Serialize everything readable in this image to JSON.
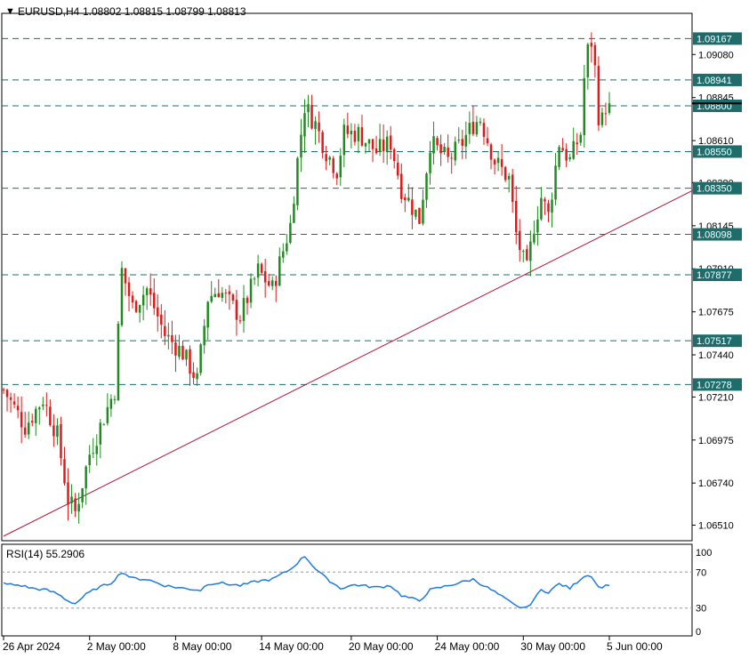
{
  "header": {
    "menu_glyph": "▼",
    "symbol_label": "EURUSD,H4",
    "ohlc_values": "1.08802 1.08815 1.08799 1.08813"
  },
  "rsi_header": {
    "label": "RSI(14) 55.2906"
  },
  "colors": {
    "bull": "#1e8c1e",
    "bear": "#e01a1a",
    "trendline": "#b0183b",
    "hline": "#1e6c6c",
    "label_bg": "#1e6c6c",
    "rsi": "#1e7be0",
    "frame": "#000000"
  },
  "chart_data": [
    {
      "type": "candlestick",
      "symbol": "EURUSD",
      "timeframe": "H4",
      "ylim": [
        1.0643,
        1.093
      ],
      "y_ticks": [
        "1.09080",
        "1.08845",
        "1.08610",
        "1.08380",
        "1.08145",
        "1.07910",
        "1.07675",
        "1.07440",
        "1.07210",
        "1.06975",
        "1.06740",
        "1.06510"
      ],
      "x_ticks": [
        "26 Apr 2024",
        "2 May 00:00",
        "8 May 00:00",
        "14 May 00:00",
        "20 May 00:00",
        "24 May 00:00",
        "30 May 00:00",
        "5 Jun 00:00"
      ],
      "horizontal_levels": [
        1.09167,
        1.08941,
        1.088,
        1.0855,
        1.0835,
        1.08098,
        1.07877,
        1.07517,
        1.07278
      ],
      "horizontal_level_labels": [
        "1.09167",
        "1.08941",
        "1.08800",
        "1.08550",
        "1.08350",
        "1.08098",
        "1.07877",
        "1.07517",
        "1.07278"
      ],
      "current_price": 1.08813,
      "trendline": [
        [
          0,
          1.0645
        ],
        [
          194,
          1.08355
        ]
      ],
      "candle_count": 170,
      "anchors": [
        [
          0,
          1.0725
        ],
        [
          6,
          1.0705
        ],
        [
          11,
          1.072
        ],
        [
          15,
          1.07
        ],
        [
          18,
          1.0665
        ],
        [
          20,
          1.0658
        ],
        [
          24,
          1.069
        ],
        [
          28,
          1.071
        ],
        [
          31,
          1.0725
        ],
        [
          33,
          1.079
        ],
        [
          36,
          1.077
        ],
        [
          40,
          1.078
        ],
        [
          45,
          1.0755
        ],
        [
          50,
          1.0745
        ],
        [
          54,
          1.073
        ],
        [
          57,
          1.0775
        ],
        [
          60,
          1.078
        ],
        [
          66,
          1.0765
        ],
        [
          71,
          1.079
        ],
        [
          75,
          1.078
        ],
        [
          80,
          1.0815
        ],
        [
          82,
          1.085
        ],
        [
          84,
          1.088
        ],
        [
          87,
          1.087
        ],
        [
          90,
          1.0855
        ],
        [
          93,
          1.0845
        ],
        [
          95,
          1.0865
        ],
        [
          99,
          1.0865
        ],
        [
          104,
          1.0855
        ],
        [
          108,
          1.086
        ],
        [
          111,
          1.0835
        ],
        [
          116,
          1.0818
        ],
        [
          119,
          1.086
        ],
        [
          124,
          1.085
        ],
        [
          128,
          1.086
        ],
        [
          131,
          1.087
        ],
        [
          133,
          1.0873
        ],
        [
          137,
          1.085
        ],
        [
          141,
          1.084
        ],
        [
          143,
          1.081
        ],
        [
          145,
          1.0795
        ],
        [
          146,
          1.079
        ],
        [
          148,
          1.0815
        ],
        [
          150,
          1.083
        ],
        [
          152,
          1.082
        ],
        [
          155,
          1.086
        ],
        [
          158,
          1.085
        ],
        [
          161,
          1.0865
        ],
        [
          162,
          1.0895
        ],
        [
          163,
          1.091
        ],
        [
          164,
          1.0915
        ],
        [
          165,
          1.09
        ],
        [
          166,
          1.0875
        ],
        [
          167,
          1.0872
        ],
        [
          168,
          1.088
        ],
        [
          169,
          1.08813
        ]
      ]
    },
    {
      "type": "line",
      "name": "RSI(14)",
      "value": 55.2906,
      "ylim": [
        0,
        100
      ],
      "y_ticks": [
        "100",
        "70",
        "30",
        "0"
      ],
      "levels": [
        70,
        30
      ],
      "anchors": [
        [
          0,
          57
        ],
        [
          5,
          55
        ],
        [
          8,
          52
        ],
        [
          12,
          50
        ],
        [
          15,
          46
        ],
        [
          18,
          38
        ],
        [
          20,
          35
        ],
        [
          23,
          45
        ],
        [
          26,
          52
        ],
        [
          30,
          58
        ],
        [
          33,
          70
        ],
        [
          36,
          63
        ],
        [
          40,
          62
        ],
        [
          45,
          55
        ],
        [
          50,
          52
        ],
        [
          55,
          50
        ],
        [
          57,
          57
        ],
        [
          60,
          58
        ],
        [
          66,
          55
        ],
        [
          71,
          60
        ],
        [
          75,
          62
        ],
        [
          80,
          73
        ],
        [
          84,
          88
        ],
        [
          87,
          74
        ],
        [
          90,
          63
        ],
        [
          94,
          52
        ],
        [
          98,
          56
        ],
        [
          104,
          53
        ],
        [
          108,
          55
        ],
        [
          111,
          44
        ],
        [
          116,
          38
        ],
        [
          119,
          50
        ],
        [
          124,
          55
        ],
        [
          131,
          62
        ],
        [
          137,
          48
        ],
        [
          143,
          32
        ],
        [
          146,
          30
        ],
        [
          150,
          50
        ],
        [
          152,
          48
        ],
        [
          155,
          57
        ],
        [
          158,
          52
        ],
        [
          162,
          66
        ],
        [
          164,
          66
        ],
        [
          166,
          53
        ],
        [
          169,
          55.29
        ]
      ]
    }
  ]
}
